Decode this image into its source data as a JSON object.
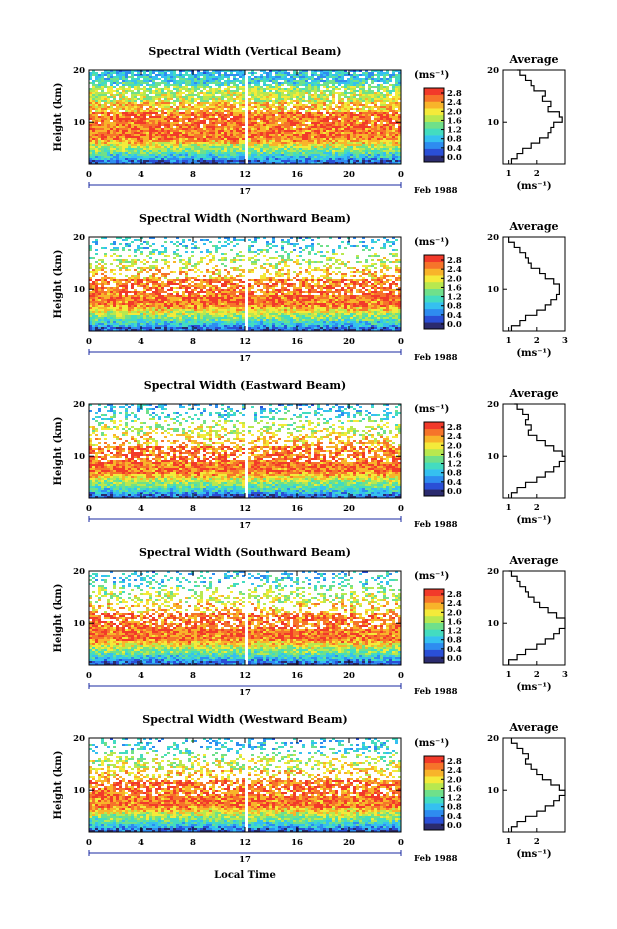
{
  "figure": {
    "bottom_xlabel": "Local Time",
    "ylabel": "Height (km)",
    "x_ticks": [
      "0",
      "4",
      "8",
      "12",
      "16",
      "20",
      "0"
    ],
    "y_ticks": [
      "20",
      "10"
    ],
    "date_day": "17",
    "date_month_year": "Feb 1988",
    "colorbar_unit": "(ms⁻¹)",
    "colorbar_ticks": [
      "2.8",
      "2.4",
      "2.0",
      "1.6",
      "1.2",
      "0.8",
      "0.4",
      "0.0"
    ],
    "colorbar_colors": [
      "#2b2b6e",
      "#2a4fd6",
      "#2e8cf0",
      "#35c0f0",
      "#43dcc0",
      "#6fe08a",
      "#b8e84f",
      "#f4ea3a",
      "#f8b42a",
      "#f6742a",
      "#f23a2a"
    ],
    "avg_title": "Average",
    "avg_xlabel": "(ms⁻¹)"
  },
  "chart_data": [
    {
      "type": "heatmap",
      "title": "Spectral Width (Vertical Beam)",
      "xlabel": "Local Time",
      "ylabel": "Height (km)",
      "xlim": [
        0,
        24
      ],
      "ylim": [
        2,
        20
      ],
      "colorbar_range": [
        0,
        3.0
      ],
      "gap_at_hour": 12,
      "profile": {
        "title": "Average",
        "x_ticks": [
          "1",
          "2"
        ],
        "xlim": [
          0.8,
          3.0
        ],
        "heights": [
          2,
          3,
          4,
          5,
          6,
          7,
          8,
          9,
          10,
          11,
          12,
          13,
          14,
          15,
          16,
          17,
          18,
          19,
          20
        ],
        "values": [
          1.1,
          1.3,
          1.5,
          1.8,
          2.1,
          2.4,
          2.5,
          2.6,
          2.9,
          2.8,
          2.4,
          2.5,
          2.2,
          2.3,
          1.9,
          1.8,
          1.6,
          1.4,
          1.3
        ]
      }
    },
    {
      "type": "heatmap",
      "title": "Spectral Width (Northward Beam)",
      "xlabel": "Local Time",
      "ylabel": "Height (km)",
      "xlim": [
        0,
        24
      ],
      "ylim": [
        2,
        20
      ],
      "colorbar_range": [
        0,
        3.0
      ],
      "gap_at_hour": 12,
      "profile": {
        "title": "Average",
        "x_ticks": [
          "1",
          "2",
          "3"
        ],
        "xlim": [
          0.8,
          3.0
        ],
        "heights": [
          2,
          3,
          4,
          5,
          6,
          7,
          8,
          9,
          10,
          11,
          12,
          13,
          14,
          15,
          16,
          17,
          18,
          19,
          20
        ],
        "values": [
          1.1,
          1.4,
          1.6,
          2.0,
          2.3,
          2.5,
          2.7,
          2.8,
          2.8,
          2.6,
          2.3,
          2.1,
          1.8,
          1.7,
          1.6,
          1.4,
          1.2,
          1.0,
          1.0
        ]
      }
    },
    {
      "type": "heatmap",
      "title": "Spectral Width (Eastward Beam)",
      "xlabel": "Local Time",
      "ylabel": "Height (km)",
      "xlim": [
        0,
        24
      ],
      "ylim": [
        2,
        20
      ],
      "colorbar_range": [
        0,
        3.0
      ],
      "gap_at_hour": 12,
      "profile": {
        "title": "Average",
        "x_ticks": [
          "1",
          "2"
        ],
        "xlim": [
          0.8,
          3.0
        ],
        "heights": [
          2,
          3,
          4,
          5,
          6,
          7,
          8,
          9,
          10,
          11,
          12,
          13,
          14,
          15,
          16,
          17,
          18,
          19,
          20
        ],
        "values": [
          1.1,
          1.3,
          1.6,
          2.0,
          2.3,
          2.6,
          2.8,
          3.0,
          2.9,
          2.6,
          2.3,
          2.0,
          1.7,
          1.8,
          1.6,
          1.7,
          1.5,
          1.3,
          1.2
        ]
      }
    },
    {
      "type": "heatmap",
      "title": "Spectral Width (Southward Beam)",
      "xlabel": "Local Time",
      "ylabel": "Height (km)",
      "xlim": [
        0,
        24
      ],
      "ylim": [
        2,
        20
      ],
      "colorbar_range": [
        0,
        3.0
      ],
      "gap_at_hour": 12,
      "profile": {
        "title": "Average",
        "x_ticks": [
          "1",
          "2",
          "3"
        ],
        "xlim": [
          0.8,
          3.0
        ],
        "heights": [
          2,
          3,
          4,
          5,
          6,
          7,
          8,
          9,
          10,
          11,
          12,
          13,
          14,
          15,
          16,
          17,
          18,
          19,
          20
        ],
        "values": [
          1.0,
          1.3,
          1.6,
          2.0,
          2.3,
          2.6,
          2.8,
          3.0,
          3.0,
          2.7,
          2.4,
          2.1,
          1.9,
          1.7,
          1.6,
          1.4,
          1.3,
          1.1,
          1.0
        ]
      }
    },
    {
      "type": "heatmap",
      "title": "Spectral Width (Westward Beam)",
      "xlabel": "Local Time",
      "ylabel": "Height (km)",
      "xlim": [
        0,
        24
      ],
      "ylim": [
        2,
        20
      ],
      "colorbar_range": [
        0,
        3.0
      ],
      "gap_at_hour": 12,
      "profile": {
        "title": "Average",
        "x_ticks": [
          "1",
          "2"
        ],
        "xlim": [
          0.8,
          3.0
        ],
        "heights": [
          2,
          3,
          4,
          5,
          6,
          7,
          8,
          9,
          10,
          11,
          12,
          13,
          14,
          15,
          16,
          17,
          18,
          19,
          20
        ],
        "values": [
          1.1,
          1.3,
          1.6,
          2.0,
          2.3,
          2.6,
          2.8,
          3.0,
          2.8,
          2.5,
          2.2,
          2.0,
          1.8,
          1.6,
          1.7,
          1.5,
          1.3,
          1.1,
          1.1
        ]
      }
    }
  ]
}
